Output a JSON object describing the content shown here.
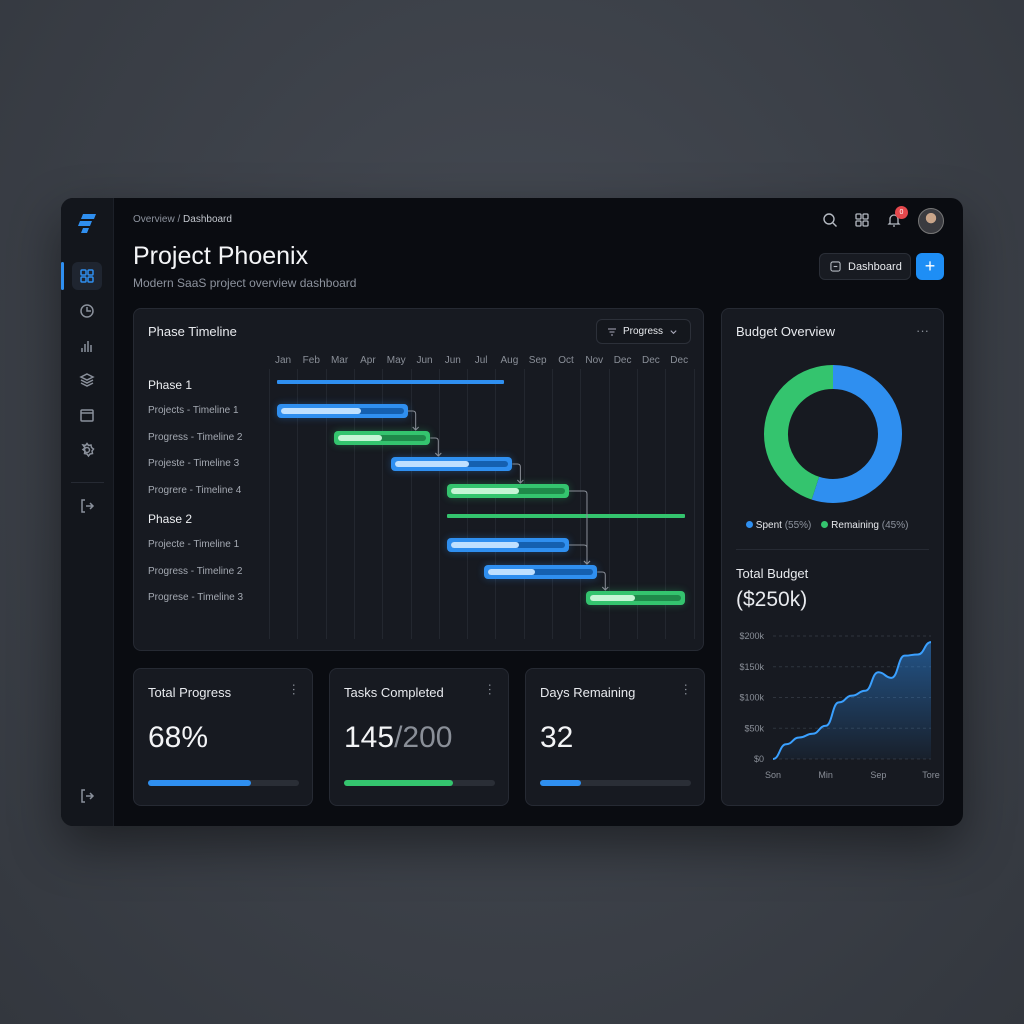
{
  "breadcrumb": {
    "parent": "Overview",
    "separator": "/",
    "current": "Dashboard"
  },
  "page": {
    "title": "Project Phoenix",
    "subtitle": "Modern SaaS project overview dashboard"
  },
  "header": {
    "dashboard_button": "Dashboard",
    "add_button": "+",
    "notification_count": "0"
  },
  "sidebar": {
    "items": [
      {
        "icon": "grid-icon",
        "active": true
      },
      {
        "icon": "clock-icon"
      },
      {
        "icon": "bar-chart-icon"
      },
      {
        "icon": "layers-icon"
      },
      {
        "icon": "calendar-icon"
      },
      {
        "icon": "gear-icon"
      },
      {
        "icon": "logout-icon"
      }
    ]
  },
  "colors": {
    "blue": "#2f8ff0",
    "green": "#34c46e",
    "bg": "#0a0c11",
    "card": "#171a21"
  },
  "timeline": {
    "title": "Phase Timeline",
    "filter_label": "Progress",
    "months": [
      "Jan",
      "Feb",
      "Mar",
      "Apr",
      "May",
      "Jun",
      "Jun",
      "Jul",
      "Aug",
      "Sep",
      "Oct",
      "Nov",
      "Dec",
      "Dec",
      "Dec"
    ],
    "rows": [
      {
        "label": "Phase 1",
        "type": "phase",
        "color": "blue",
        "start": 0.3,
        "end": 8.3
      },
      {
        "label": "Projects - Timeline 1",
        "type": "task",
        "color": "blue",
        "start": 0.3,
        "end": 4.9,
        "progress": 0.65
      },
      {
        "label": "Progress - Timeline 2",
        "type": "task",
        "color": "green",
        "start": 2.3,
        "end": 5.7,
        "progress": 0.5
      },
      {
        "label": "Projeste - Timeline 3",
        "type": "task",
        "color": "blue",
        "start": 4.3,
        "end": 8.6,
        "progress": 0.65
      },
      {
        "label": "Progrere - Timeline 4",
        "type": "task",
        "color": "green",
        "start": 6.3,
        "end": 10.6,
        "progress": 0.6
      },
      {
        "label": "Phase 2",
        "type": "phase",
        "color": "green",
        "start": 6.3,
        "end": 14.7
      },
      {
        "label": "Projecte - Timeline 1",
        "type": "task",
        "color": "blue",
        "start": 6.3,
        "end": 10.6,
        "progress": 0.6
      },
      {
        "label": "Progress - Timeline 2",
        "type": "task",
        "color": "blue",
        "start": 7.6,
        "end": 11.6,
        "progress": 0.45
      },
      {
        "label": "Progrese - Timeline 3",
        "type": "task",
        "color": "green",
        "start": 11.2,
        "end": 14.7,
        "progress": 0.5
      }
    ]
  },
  "stats": [
    {
      "title": "Total Progress",
      "value": "68%",
      "suffix": "",
      "progress": 0.68,
      "color": "blue"
    },
    {
      "title": "Tasks Completed",
      "value": "145",
      "suffix": "/200",
      "progress": 0.725,
      "color": "green"
    },
    {
      "title": "Days Remaining",
      "value": "32",
      "suffix": "",
      "progress": 0.27,
      "color": "blue"
    }
  ],
  "budget": {
    "title": "Budget Overview",
    "menu": "···",
    "legend": [
      {
        "label": "Spent",
        "pct": "(55%)",
        "color": "blue",
        "value": 55
      },
      {
        "label": "Remaining",
        "pct": "(45%)",
        "color": "green",
        "value": 45
      }
    ],
    "total_label": "Total Budget",
    "total_value": "($250k)"
  },
  "chart_data": {
    "type": "area",
    "y_ticks": [
      "$200k",
      "$150k",
      "$100k",
      "$50k",
      "$0"
    ],
    "ylim": [
      0,
      200
    ],
    "x_labels": [
      "Son",
      "Min",
      "Sep",
      "Tore"
    ],
    "values": [
      0,
      24,
      35,
      41,
      54,
      92,
      103,
      111,
      141,
      132,
      168,
      170,
      190
    ],
    "grid": true
  }
}
